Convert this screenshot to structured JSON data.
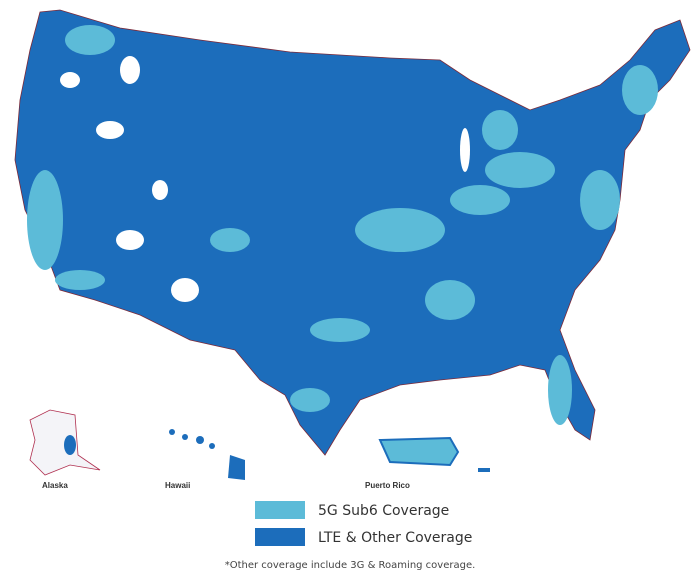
{
  "labels": {
    "alaska": "Alaska",
    "hawaii": "Hawaii",
    "puerto_rico": "Puerto Rico"
  },
  "legend": {
    "items": [
      {
        "name": "5G Sub6 Coverage",
        "color": "#5cbbd8"
      },
      {
        "name": "LTE & Other Coverage",
        "color": "#1c6dbb"
      }
    ]
  },
  "footnote": "*Other coverage include 3G & Roaming coverage."
}
